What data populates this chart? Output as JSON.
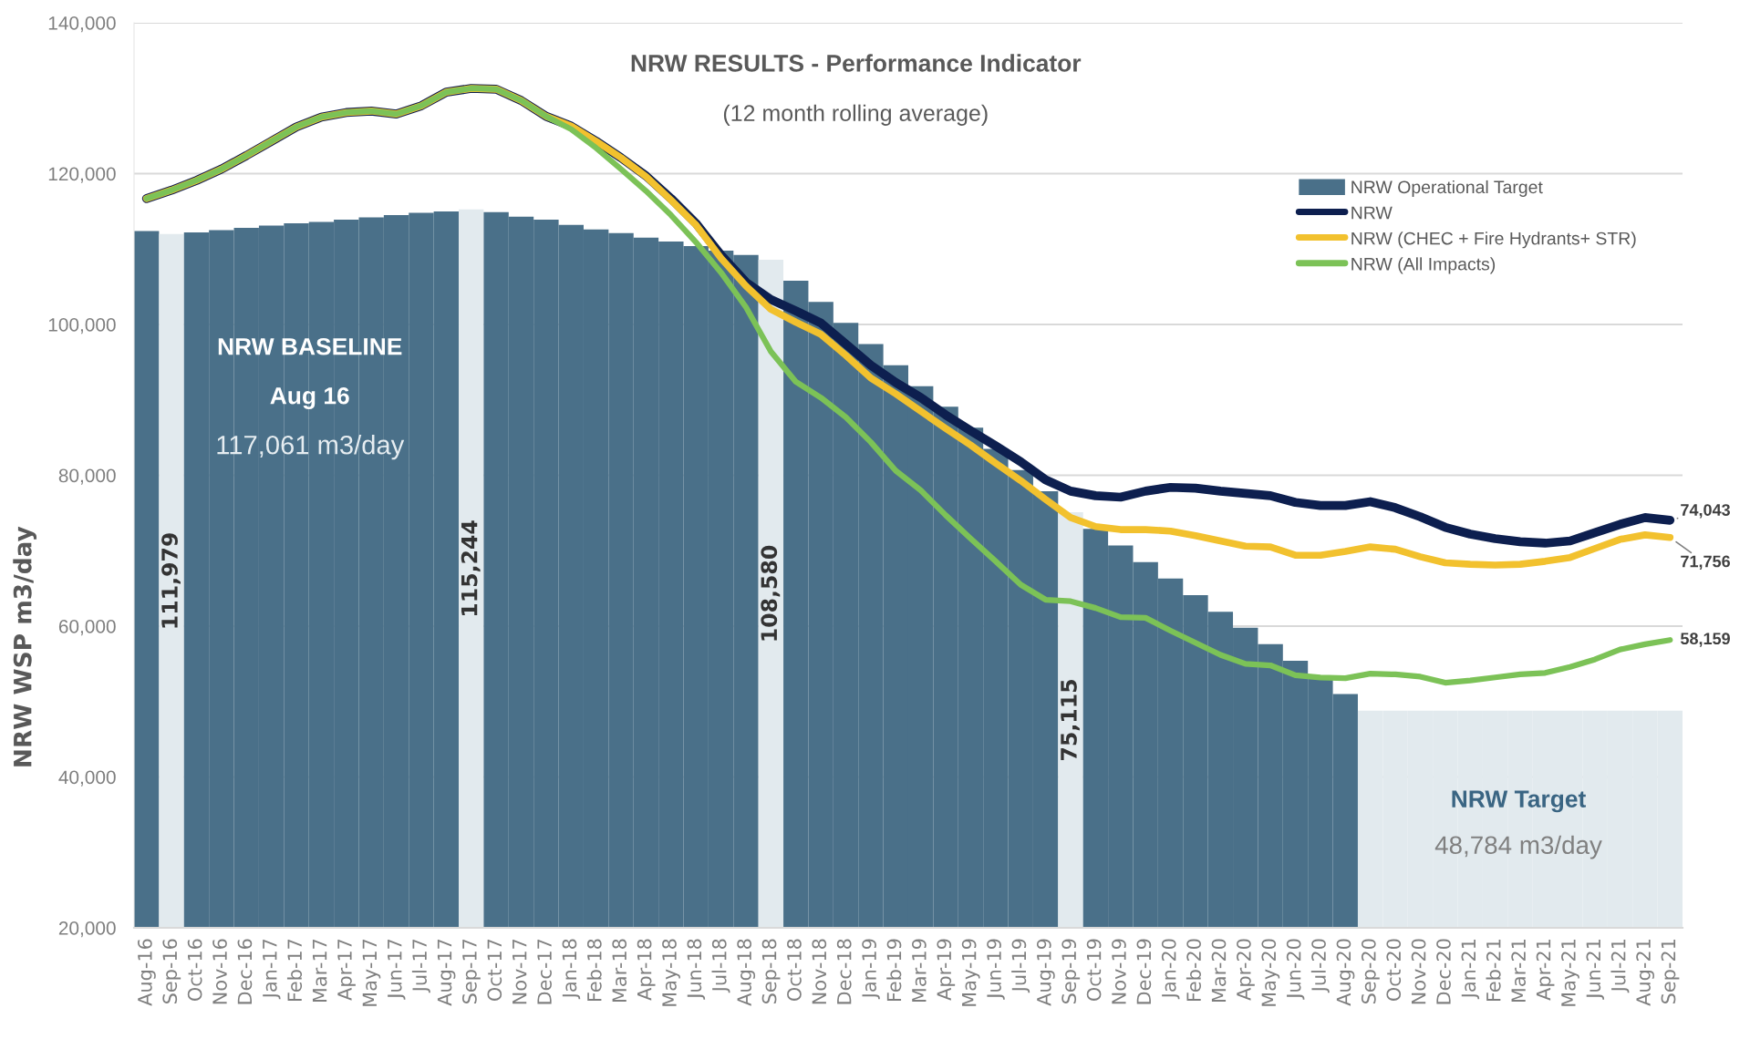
{
  "chart_data": {
    "type": "bar",
    "title": "NRW RESULTS - Performance Indicator",
    "subtitle": "(12 month rolling average)",
    "ylabel": "NRW WSP m3/day",
    "annotations": [
      "NRW BASELINE",
      "Aug 16",
      "117,061 m3/day",
      "NRW Target",
      "48,784 m3/day"
    ],
    "categories": [
      "Aug-16",
      "Sep-16",
      "Oct-16",
      "Nov-16",
      "Dec-16",
      "Jan-17",
      "Feb-17",
      "Mar-17",
      "Apr-17",
      "May-17",
      "Jun-17",
      "Jul-17",
      "Aug-17",
      "Sep-17",
      "Oct-17",
      "Nov-17",
      "Dec-17",
      "Jan-18",
      "Feb-18",
      "Mar-18",
      "Apr-18",
      "May-18",
      "Jun-18",
      "Jul-18",
      "Aug-18",
      "Sep-18",
      "Oct-18",
      "Nov-18",
      "Dec-18",
      "Jan-19",
      "Feb-19",
      "Mar-19",
      "Apr-19",
      "May-19",
      "Jun-19",
      "Jul-19",
      "Aug-19",
      "Sep-19",
      "Oct-19",
      "Nov-19",
      "Dec-19",
      "Jan-20",
      "Feb-20",
      "Mar-20",
      "Apr-20",
      "May-20",
      "Jun-20",
      "Jul-20",
      "Aug-20",
      "Sep-20",
      "Oct-20",
      "Nov-20",
      "Dec-20",
      "Jan-21",
      "Feb-21",
      "Mar-21",
      "Apr-21",
      "May-21",
      "Jun-21",
      "Jul-21",
      "Aug-21",
      "Sep-21"
    ],
    "series": [
      {
        "name": "NRW Operational Target",
        "color": "#4a7089",
        "colors": [
          "#4a7089",
          "#e2eaee",
          "#4a7089",
          "#4a7089",
          "#4a7089",
          "#4a7089",
          "#4a7089",
          "#4a7089",
          "#4a7089",
          "#4a7089",
          "#4a7089",
          "#4a7089",
          "#4a7089",
          "#e2eaee",
          "#4a7089",
          "#4a7089",
          "#4a7089",
          "#4a7089",
          "#4a7089",
          "#4a7089",
          "#4a7089",
          "#4a7089",
          "#4a7089",
          "#4a7089",
          "#4a7089",
          "#e2eaee",
          "#4a7089",
          "#4a7089",
          "#4a7089",
          "#4a7089",
          "#4a7089",
          "#4a7089",
          "#4a7089",
          "#4a7089",
          "#4a7089",
          "#4a7089",
          "#4a7089",
          "#e2eaee",
          "#4a7089",
          "#4a7089",
          "#4a7089",
          "#4a7089",
          "#4a7089",
          "#4a7089",
          "#4a7089",
          "#4a7089",
          "#4a7089",
          "#4a7089",
          "#4a7089",
          "#e2eaee",
          "#e2eaee",
          "#e2eaee",
          "#e2eaee",
          "#e2eaee",
          "#e2eaee",
          "#e2eaee",
          "#e2eaee",
          "#e2eaee",
          "#e2eaee",
          "#e2eaee",
          "#e2eaee",
          "#e2eaee"
        ],
        "values": [
          112400,
          111979,
          112200,
          112500,
          112800,
          113100,
          113400,
          113600,
          113900,
          114200,
          114500,
          114800,
          115000,
          115244,
          114900,
          114300,
          113900,
          113200,
          112600,
          112100,
          111500,
          111000,
          110400,
          109800,
          109200,
          108580,
          105800,
          103000,
          100200,
          97400,
          94600,
          91800,
          89100,
          86300,
          83500,
          80700,
          77900,
          75115,
          72900,
          70700,
          68500,
          66300,
          64100,
          61900,
          59800,
          57600,
          55400,
          53200,
          51000,
          48784,
          48784,
          48784,
          48784,
          48784,
          48784,
          48784,
          48784,
          48784,
          48784,
          48784,
          48784,
          48784
        ],
        "value_labels": [
          null,
          "111,979",
          null,
          null,
          null,
          null,
          null,
          null,
          null,
          null,
          null,
          null,
          null,
          "115,244",
          null,
          null,
          null,
          null,
          null,
          null,
          null,
          null,
          null,
          null,
          null,
          "108,580",
          null,
          null,
          null,
          null,
          null,
          null,
          null,
          null,
          null,
          null,
          null,
          "75,115",
          null,
          null,
          null,
          null,
          null,
          null,
          null,
          null,
          null,
          null,
          null,
          null,
          null,
          null,
          null,
          null,
          null,
          null,
          null,
          null,
          null,
          null,
          null,
          null
        ]
      },
      {
        "name": "NRW",
        "type": "line",
        "color": "#0d1f4f",
        "values": [
          116700,
          117800,
          119100,
          120600,
          122400,
          124300,
          126200,
          127500,
          128100,
          128300,
          127900,
          129000,
          130800,
          131300,
          131200,
          129700,
          127600,
          126300,
          124300,
          122100,
          119700,
          116700,
          113400,
          109200,
          105600,
          103300,
          101800,
          100200,
          97400,
          94600,
          92300,
          90300,
          88000,
          85900,
          83900,
          81800,
          79400,
          77900,
          77300,
          77100,
          77900,
          78400,
          78300,
          77900,
          77600,
          77300,
          76400,
          76000,
          76000,
          76500,
          75700,
          74500,
          73100,
          72200,
          71600,
          71200,
          71000,
          71300,
          72400,
          73500,
          74400,
          74043
        ],
        "value_labels": [
          null,
          null,
          null,
          null,
          null,
          null,
          null,
          null,
          null,
          null,
          null,
          null,
          null,
          null,
          null,
          null,
          null,
          null,
          null,
          null,
          null,
          null,
          null,
          null,
          null,
          null,
          null,
          null,
          null,
          null,
          null,
          null,
          null,
          null,
          null,
          null,
          null,
          null,
          null,
          null,
          null,
          null,
          null,
          null,
          null,
          null,
          null,
          null,
          null,
          null,
          null,
          null,
          null,
          null,
          null,
          null,
          null,
          null,
          null,
          null,
          null,
          "74,043"
        ]
      },
      {
        "name": "NRW (CHEC + Fire Hydrants+ STR)",
        "type": "line",
        "color": "#f2c12e",
        "values": [
          116700,
          117800,
          119100,
          120600,
          122400,
          124300,
          126200,
          127500,
          128100,
          128300,
          127900,
          129000,
          130800,
          131300,
          131200,
          129700,
          127600,
          126300,
          124300,
          122100,
          119600,
          116500,
          113200,
          108800,
          105100,
          102000,
          100300,
          98700,
          95900,
          92900,
          90800,
          88500,
          86200,
          84000,
          81600,
          79300,
          76800,
          74400,
          73200,
          72800,
          72800,
          72600,
          72000,
          71300,
          70600,
          70500,
          69400,
          69400,
          69900,
          70500,
          70200,
          69200,
          68400,
          68200,
          68100,
          68200,
          68600,
          69100,
          70300,
          71500,
          72100,
          71756
        ],
        "value_labels": [
          null,
          null,
          null,
          null,
          null,
          null,
          null,
          null,
          null,
          null,
          null,
          null,
          null,
          null,
          null,
          null,
          null,
          null,
          null,
          null,
          null,
          null,
          null,
          null,
          null,
          null,
          null,
          null,
          null,
          null,
          null,
          null,
          null,
          null,
          null,
          null,
          null,
          null,
          null,
          null,
          null,
          null,
          null,
          null,
          null,
          null,
          null,
          null,
          null,
          null,
          null,
          null,
          null,
          null,
          null,
          null,
          null,
          null,
          null,
          null,
          null,
          "71,756"
        ]
      },
      {
        "name": "NRW (All Impacts)",
        "type": "line",
        "color": "#7cc257",
        "values": [
          116700,
          117800,
          119100,
          120600,
          122400,
          124300,
          126200,
          127500,
          128100,
          128300,
          127900,
          129000,
          130800,
          131300,
          131200,
          129700,
          127600,
          125900,
          123400,
          120600,
          117700,
          114500,
          110900,
          106900,
          102300,
          96400,
          92400,
          90300,
          87700,
          84400,
          80600,
          78000,
          74700,
          71600,
          68600,
          65500,
          63500,
          63300,
          62400,
          61200,
          61100,
          59400,
          57800,
          56200,
          55000,
          54800,
          53500,
          53200,
          53100,
          53700,
          53600,
          53300,
          52500,
          52800,
          53200,
          53600,
          53800,
          54600,
          55600,
          56900,
          57600,
          58159
        ],
        "value_labels": [
          null,
          null,
          null,
          null,
          null,
          null,
          null,
          null,
          null,
          null,
          null,
          null,
          null,
          null,
          null,
          null,
          null,
          null,
          null,
          null,
          null,
          null,
          null,
          null,
          null,
          null,
          null,
          null,
          null,
          null,
          null,
          null,
          null,
          null,
          null,
          null,
          null,
          null,
          null,
          null,
          null,
          null,
          null,
          null,
          null,
          null,
          null,
          null,
          null,
          null,
          null,
          null,
          null,
          null,
          null,
          null,
          null,
          null,
          null,
          null,
          null,
          "58,159"
        ]
      }
    ],
    "ylim": [
      20000,
      140000
    ],
    "yticks": [
      {
        "value": 20000,
        "label": "20,000"
      },
      {
        "value": 40000,
        "label": "40,000"
      },
      {
        "value": 60000,
        "label": "60,000"
      },
      {
        "value": 80000,
        "label": "80,000"
      },
      {
        "value": 100000,
        "label": "100,000"
      },
      {
        "value": 120000,
        "label": "120,000"
      },
      {
        "value": 140000,
        "label": "140,000"
      }
    ],
    "grid": "y",
    "legend": "top right"
  }
}
